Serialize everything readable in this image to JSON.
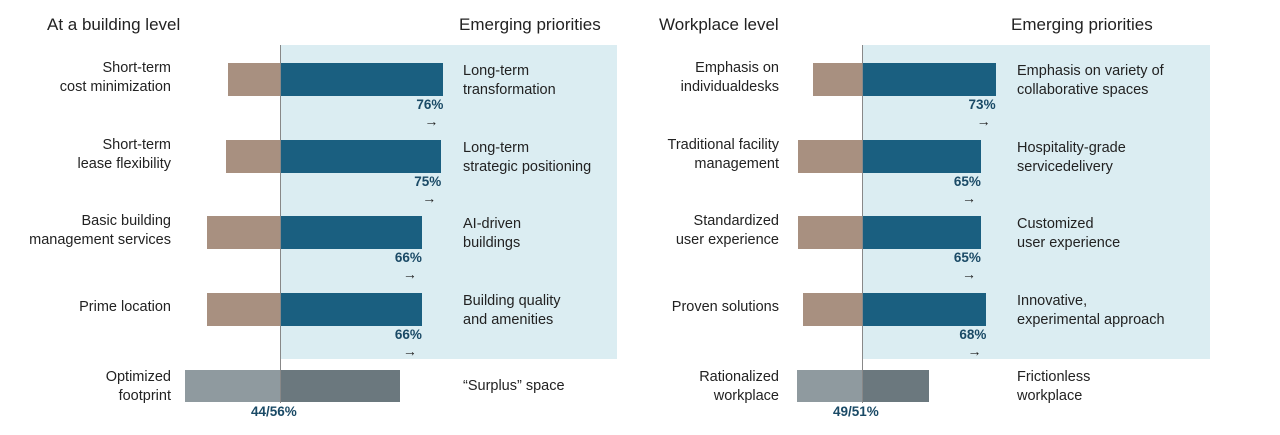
{
  "colors": {
    "traditional": "#a89080",
    "emerging": "#1a5f80",
    "highlight_bg": "#dbedf2",
    "footprint_left": "#8f9a9f",
    "footprint_right": "#6b787e",
    "pct_text": "#1a4a66"
  },
  "arrow_glyph": "→",
  "chart_data": [
    {
      "type": "bar",
      "title": "At a building level",
      "right_heading": "Emerging priorities",
      "rows": [
        {
          "left_label": "Short-term\ncost minimization",
          "right_label": "Long-term\ntransformation",
          "left_value": 24,
          "right_value": 76,
          "pct_label": "76%"
        },
        {
          "left_label": "Short-term\nlease flexibility",
          "right_label": "Long-term\nstrategic positioning",
          "left_value": 25,
          "right_value": 75,
          "pct_label": "75%"
        },
        {
          "left_label": "Basic building\nmanagement services",
          "right_label": "AI-driven\nbuildings",
          "left_value": 34,
          "right_value": 66,
          "pct_label": "66%"
        },
        {
          "left_label": "Prime location",
          "right_label": "Building quality\nand amenities",
          "left_value": 34,
          "right_value": 66,
          "pct_label": "66%"
        }
      ],
      "footprint": {
        "left_label": "Optimized\nfootprint",
        "right_label": "“Surplus” space",
        "left_value": 44,
        "right_value": 56,
        "split_label": "44/56%"
      }
    },
    {
      "type": "bar",
      "title": "Workplace level",
      "right_heading": "Emerging priorities",
      "rows": [
        {
          "left_label": "Emphasis on\nindividualdesks",
          "right_label": "Emphasis on variety of\ncollaborative spaces",
          "left_value": 27,
          "right_value": 73,
          "pct_label": "73%"
        },
        {
          "left_label": "Traditional facility\nmanagement",
          "right_label": "Hospitality-grade\nservicedelivery",
          "left_value": 35,
          "right_value": 65,
          "pct_label": "65%"
        },
        {
          "left_label": "Standardized\nuser experience",
          "right_label": "Customized\nuser experience",
          "left_value": 35,
          "right_value": 65,
          "pct_label": "65%"
        },
        {
          "left_label": "Proven solutions",
          "right_label": "Innovative,\nexperimental approach",
          "left_value": 32,
          "right_value": 68,
          "pct_label": "68%"
        }
      ],
      "footprint": {
        "left_label": "Rationalized\nworkplace",
        "right_label": "Frictionless\nworkplace",
        "left_value": 49,
        "right_value": 51,
        "split_label": "49/51%"
      }
    }
  ]
}
